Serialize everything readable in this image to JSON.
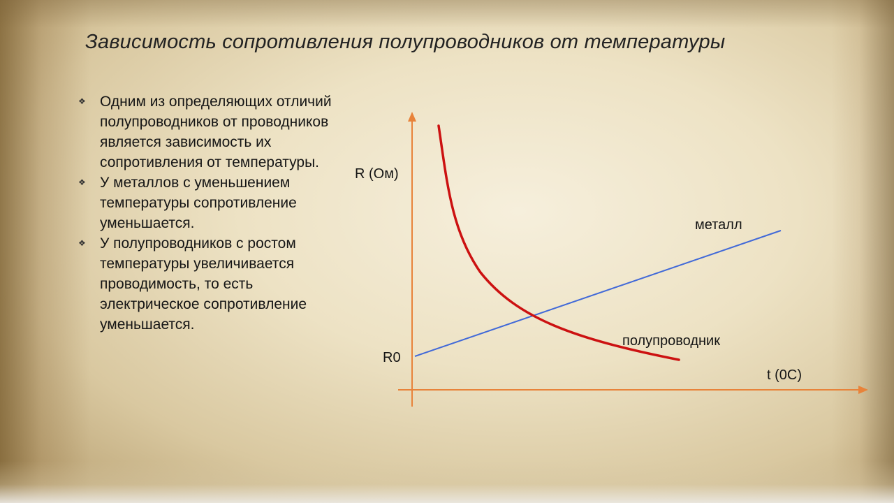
{
  "slide": {
    "title": "Зависимость сопротивления полупроводников от температуры"
  },
  "bullets": [
    {
      "marker": "❖",
      "text": "Одним из определяющих отличий полупроводников от проводников является зависимость их сопротивления от температуры."
    },
    {
      "marker": "❖",
      "text": "У металлов с уменьшением температуры сопротивление уменьшается."
    },
    {
      "marker": "❖",
      "text": "У полупроводников  с ростом температуры увеличивается проводимость, то есть электрическое сопротивление уменьшается."
    }
  ],
  "diagram": {
    "y_axis_label": "R (Ом)",
    "x_axis_label": "t (0С)",
    "origin_label": "R0",
    "metal_label": "металл",
    "semiconductor_label": "полупроводник",
    "colors": {
      "axes": "#e8833a",
      "metal": "#4169d8",
      "semiconductor": "#cc1111"
    }
  }
}
